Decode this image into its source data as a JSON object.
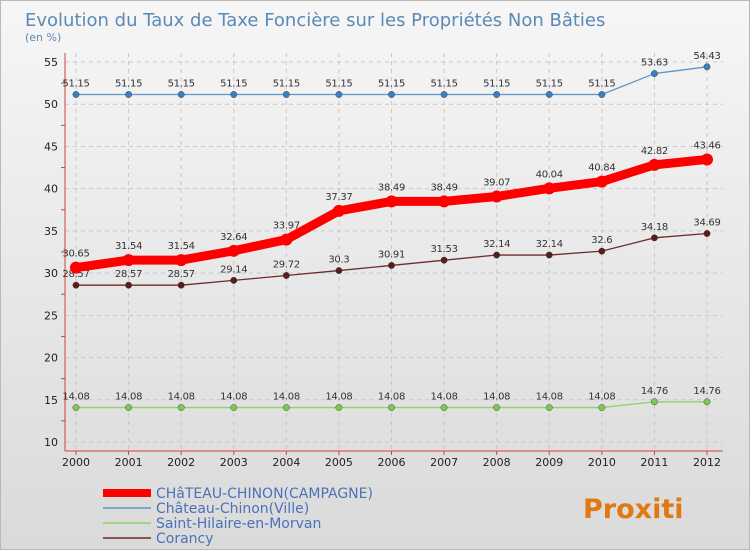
{
  "chart_data": {
    "type": "line",
    "title": "Evolution du Taux de Taxe Foncière sur les Propriétés Non Bâties",
    "subtitle": "(en %)",
    "x": [
      "2000",
      "2001",
      "2002",
      "2003",
      "2004",
      "2005",
      "2006",
      "2007",
      "2008",
      "2009",
      "2010",
      "2011",
      "2012"
    ],
    "ylim": [
      10,
      55
    ],
    "yticks": [
      10,
      15,
      20,
      25,
      30,
      35,
      40,
      45,
      50,
      55
    ],
    "grid": true,
    "legend": "bottom-left",
    "series": [
      {
        "name": "Château-Chinon(Ville)",
        "color": "#5b97c9",
        "marker": "#3a7fc0",
        "values": [
          51.15,
          51.15,
          51.15,
          51.15,
          51.15,
          51.15,
          51.15,
          51.15,
          51.15,
          51.15,
          51.15,
          53.63,
          54.43
        ],
        "labels": [
          "51.15",
          "51.15",
          "51.15",
          "51.15",
          "51.15",
          "51.15",
          "51.15",
          "51.15",
          "51.15",
          "51.15",
          "51.15",
          "53.63",
          "54.43"
        ]
      },
      {
        "name": "Corancy",
        "color": "#6e2b2b",
        "marker": "#5a1c1c",
        "values": [
          28.57,
          28.57,
          28.57,
          29.14,
          29.72,
          30.3,
          30.91,
          31.53,
          32.14,
          32.14,
          32.6,
          34.18,
          34.69
        ],
        "labels": [
          "28.57",
          "28.57",
          "28.57",
          "29.14",
          "29.72",
          "30.3",
          "30.91",
          "31.53",
          "32.14",
          "32.14",
          "32.6",
          "34.18",
          "34.69"
        ]
      },
      {
        "name": "Saint-Hilaire-en-Morvan",
        "color": "#8fd46a",
        "marker": "#7cc94f",
        "values": [
          14.08,
          14.08,
          14.08,
          14.08,
          14.08,
          14.08,
          14.08,
          14.08,
          14.08,
          14.08,
          14.08,
          14.76,
          14.76
        ],
        "labels": [
          "14.08",
          "14.08",
          "14.08",
          "14.08",
          "14.08",
          "14.08",
          "14.08",
          "14.08",
          "14.08",
          "14.08",
          "14.08",
          "14.76",
          "14.76"
        ]
      },
      {
        "name": "CHâTEAU-CHINON(CAMPAGNE)",
        "color": "#ff0000",
        "marker": "#ff0000",
        "bold": true,
        "values": [
          30.65,
          31.54,
          31.54,
          32.64,
          33.97,
          37.37,
          38.49,
          38.49,
          39.07,
          40.04,
          40.84,
          42.82,
          43.46
        ],
        "labels": [
          "30.65",
          "31.54",
          "31.54",
          "32.64",
          "33.97",
          "37.37",
          "38.49",
          "38.49",
          "39.07",
          "40.04",
          "40.84",
          "42.82",
          "43.46"
        ]
      }
    ],
    "legend_order": [
      3,
      0,
      2,
      1
    ]
  },
  "logo": {
    "text": "Proxiti"
  }
}
